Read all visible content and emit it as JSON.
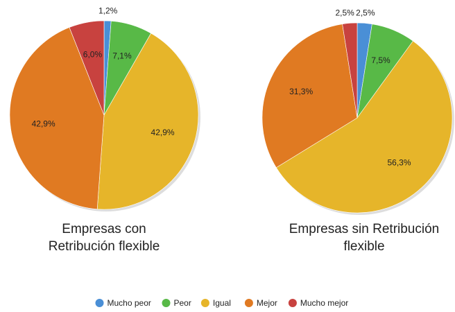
{
  "chart_data": [
    {
      "type": "pie",
      "title": "Empresas con Retribución flexible",
      "categories": [
        "Mucho peor",
        "Peor",
        "Igual",
        "Mejor",
        "Mucho mejor"
      ],
      "values": [
        1.2,
        7.1,
        42.9,
        42.9,
        6.0
      ],
      "value_labels": [
        "1,2%",
        "7,1%",
        "42,9%",
        "42,9%",
        "6,0%"
      ],
      "colors": [
        "#4a8fd6",
        "#58b947",
        "#e6b52a",
        "#e07a22",
        "#c8423f"
      ]
    },
    {
      "type": "pie",
      "title": "Empresas sin Retribución flexible",
      "categories": [
        "Mucho peor",
        "Peor",
        "Igual",
        "Mejor",
        "Mucho mejor"
      ],
      "values": [
        2.5,
        7.5,
        56.3,
        31.3,
        2.5
      ],
      "value_labels": [
        "2,5%",
        "7,5%",
        "56,3%",
        "31,3%",
        "2,5%"
      ],
      "colors": [
        "#4a8fd6",
        "#58b947",
        "#e6b52a",
        "#e07a22",
        "#c8423f"
      ]
    }
  ]
}
